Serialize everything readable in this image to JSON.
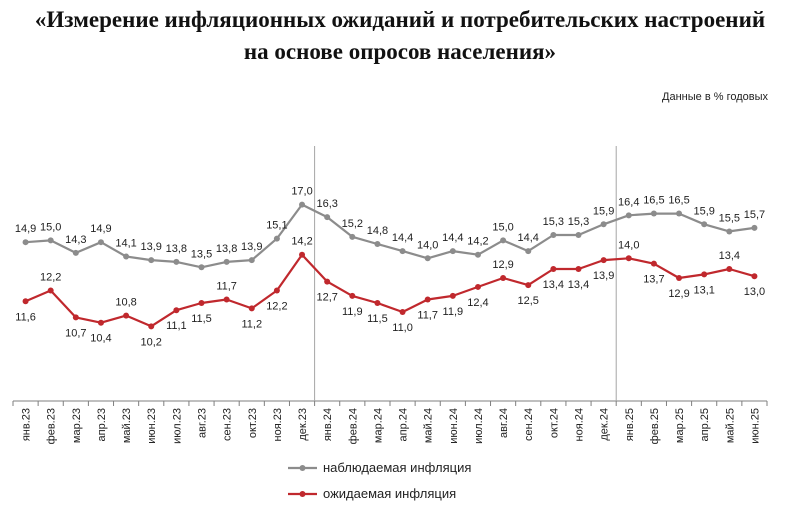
{
  "title_line1": "«Измерение инфляционных ожиданий и потребительских настроений",
  "title_line2": "на основе опросов населения»",
  "units_note": "Данные в % годовых",
  "colors": {
    "observed": "#8c8c8c",
    "expected": "#c0282d",
    "axis": "#7f7f7f"
  },
  "chart_data": {
    "type": "line",
    "title": "«Измерение инфляционных ожиданий и потребительских настроений на основе опросов населения»",
    "ylabel": "",
    "xlabel": "",
    "grid": false,
    "legend_position": "bottom-center",
    "categories": [
      "янв.23",
      "фев.23",
      "мар.23",
      "апр.23",
      "май.23",
      "июн.23",
      "июл.23",
      "авг.23",
      "сен.23",
      "окт.23",
      "ноя.23",
      "дек.23",
      "янв.24",
      "фев.24",
      "мар.24",
      "апр.24",
      "май.24",
      "июн.24",
      "июл.24",
      "авг.24",
      "сен.24",
      "окт.24",
      "ноя.24",
      "дек.24",
      "янв.25",
      "фев.25",
      "мар.25",
      "апр.25",
      "май.25",
      "июн.25"
    ],
    "series": [
      {
        "name": "наблюдаемая инфляция",
        "labels": [
          "14,9",
          "15,0",
          "14,3",
          "14,9",
          "14,1",
          "13,9",
          "13,8",
          "13,5",
          "13,8",
          "13,9",
          "15,1",
          "17,0",
          "16,3",
          "15,2",
          "14,8",
          "14,4",
          "14,0",
          "14,4",
          "14,2",
          "15,0",
          "14,4",
          "15,3",
          "15,3",
          "15,9",
          "16,4",
          "16,5",
          "16,5",
          "15,9",
          "15,5",
          "15,7"
        ],
        "values": [
          14.9,
          15.0,
          14.3,
          14.9,
          14.1,
          13.9,
          13.8,
          13.5,
          13.8,
          13.9,
          15.1,
          17.0,
          16.3,
          15.2,
          14.8,
          14.4,
          14.0,
          14.4,
          14.2,
          15.0,
          14.4,
          15.3,
          15.3,
          15.9,
          16.4,
          16.5,
          16.5,
          15.9,
          15.5,
          15.7
        ]
      },
      {
        "name": "ожидаемая инфляция",
        "labels": [
          "11,6",
          "12,2",
          "10,7",
          "10,4",
          "10,8",
          "10,2",
          "11,1",
          "11,5",
          "11,7",
          "11,2",
          "12,2",
          "14,2",
          "12,7",
          "11,9",
          "11,5",
          "11,0",
          "11,7",
          "11,9",
          "12,4",
          "12,9",
          "12,5",
          "13,4",
          "13,4",
          "13,9",
          "14,0",
          "13,7",
          "12,9",
          "13,1",
          "13,4",
          "13,0"
        ],
        "values": [
          11.6,
          12.2,
          10.7,
          10.4,
          10.8,
          10.2,
          11.1,
          11.5,
          11.7,
          11.2,
          12.2,
          14.2,
          12.7,
          11.9,
          11.5,
          11.0,
          11.7,
          11.9,
          12.4,
          12.9,
          12.5,
          13.4,
          13.4,
          13.9,
          14.0,
          13.7,
          12.9,
          13.1,
          13.4,
          13.0
        ]
      }
    ],
    "year_separators_after": [
      "дек.23",
      "дек.24"
    ]
  }
}
